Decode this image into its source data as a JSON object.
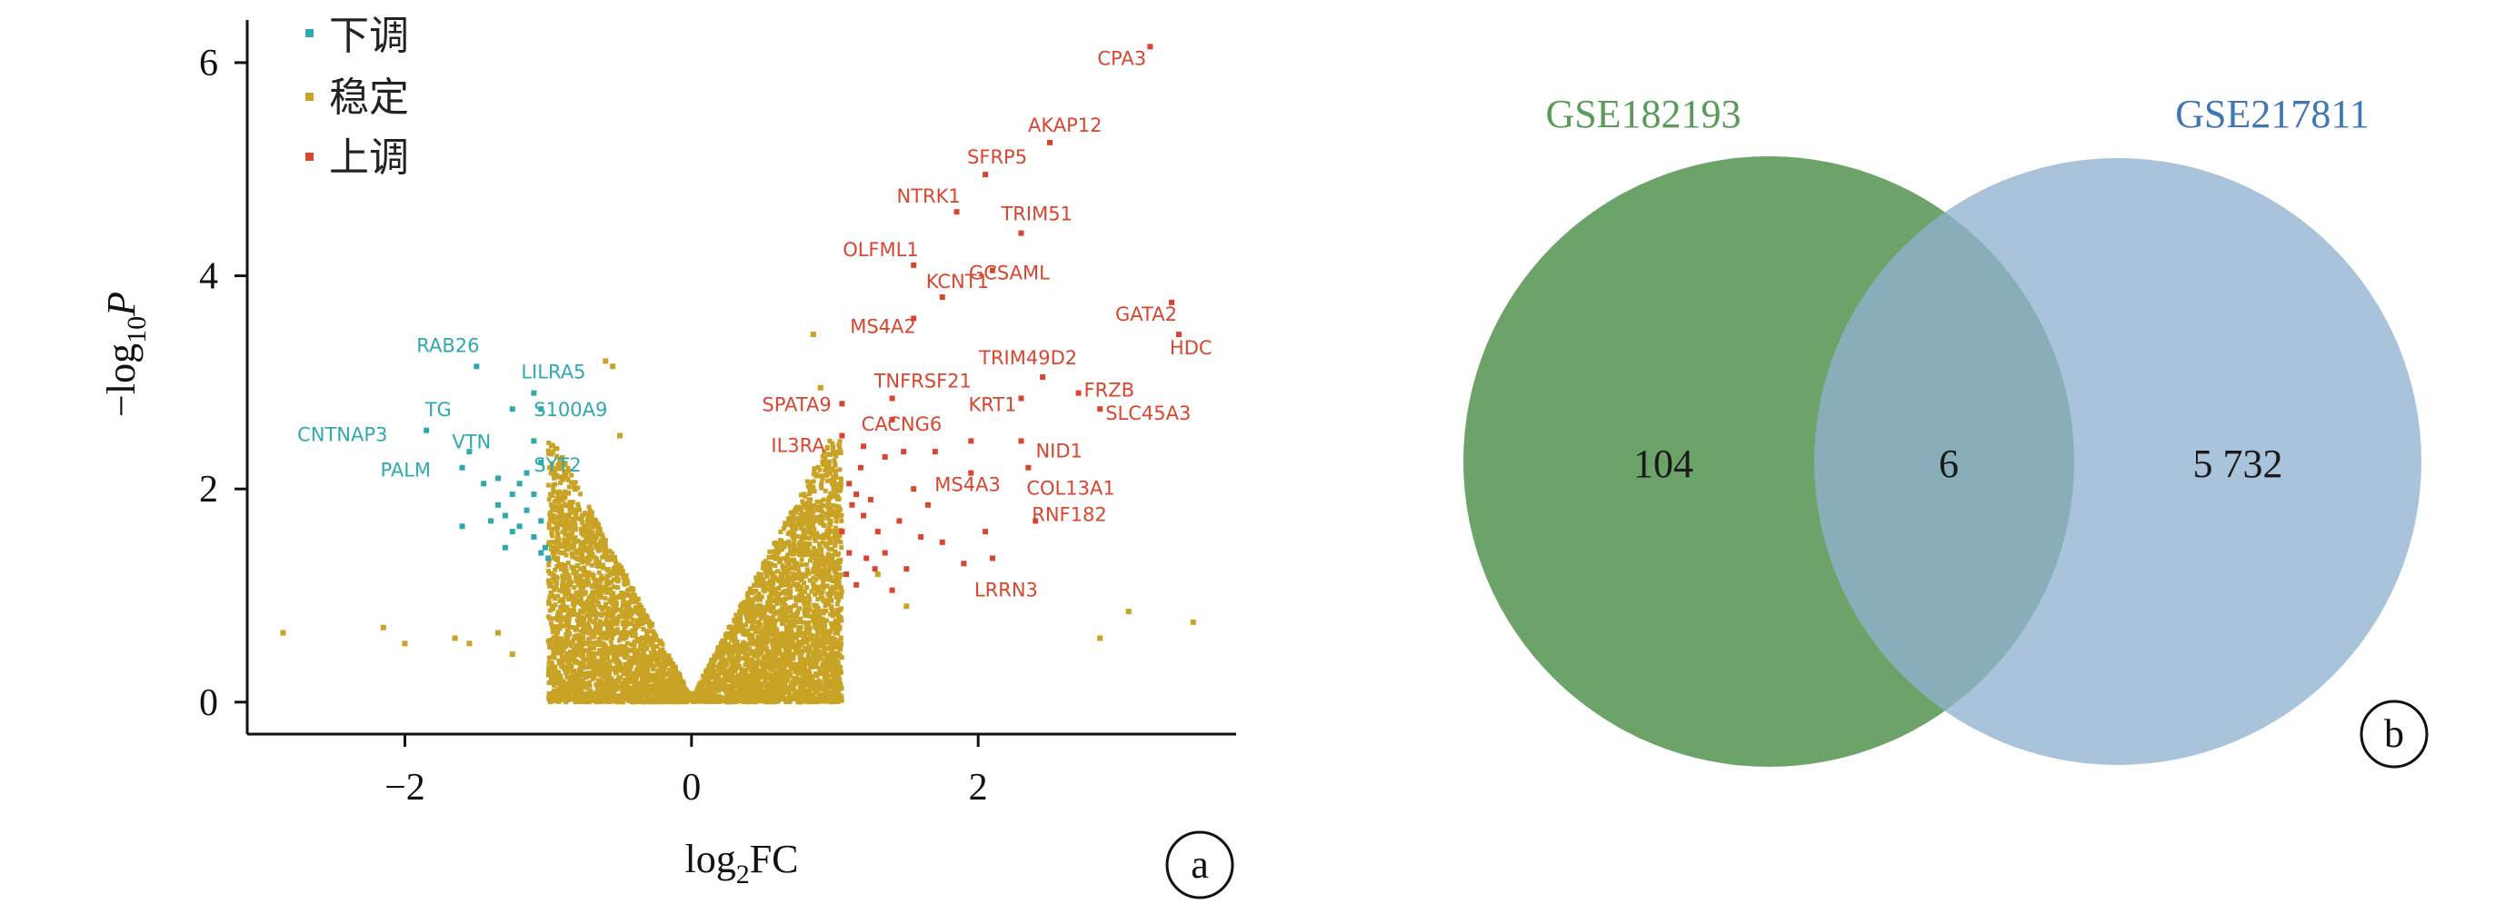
{
  "colors": {
    "down": "#2fa9b0",
    "stable": "#c9a325",
    "up": "#d9452f",
    "venn_left": "#5f9b5c",
    "venn_right": "#8fb2cf",
    "venn_left_label": "#5a9a5a",
    "venn_right_label": "#3f76b5"
  },
  "panel_a": {
    "panel_letter": "a",
    "chart_data": {
      "type": "scatter",
      "title": "",
      "xlabel_base": "log",
      "xlabel_sub": "2",
      "xlabel_tail": "FC",
      "ylabel_prefix": "−log",
      "ylabel_sub": "10",
      "ylabel_tail": "P",
      "xlim": [
        -3.1,
        3.8
      ],
      "ylim": [
        -0.3,
        6.4
      ],
      "x_ticks": [
        -2,
        0,
        2
      ],
      "x_tick_labels": [
        "−2",
        "0",
        "2"
      ],
      "y_ticks": [
        0,
        2,
        4,
        6
      ],
      "y_tick_labels": [
        "0",
        "2",
        "4",
        "6"
      ],
      "grid": false,
      "legend_position": "top-left",
      "legend": [
        {
          "key": "down",
          "label": "下调"
        },
        {
          "key": "stable",
          "label": "稳定"
        },
        {
          "key": "up",
          "label": "上调"
        }
      ],
      "stable_background_points": "dense V-shaped cloud, approx. 6000 points from (0,0) rising to |log2FC|≈1 at −log10P≈2.3",
      "stable_scattered": [
        [
          -2.85,
          0.65
        ],
        [
          -2.15,
          0.7
        ],
        [
          -2.0,
          0.55
        ],
        [
          -1.65,
          0.6
        ],
        [
          -1.55,
          0.55
        ],
        [
          -1.35,
          0.65
        ],
        [
          -1.25,
          0.45
        ],
        [
          -0.6,
          3.2
        ],
        [
          -0.55,
          3.15
        ],
        [
          -0.5,
          2.5
        ],
        [
          0.85,
          3.45
        ],
        [
          0.9,
          2.95
        ],
        [
          2.85,
          0.6
        ],
        [
          3.05,
          0.85
        ],
        [
          3.5,
          0.75
        ],
        [
          1.3,
          1.2
        ],
        [
          1.5,
          0.9
        ]
      ],
      "down_genes": [
        {
          "label": "RAB26",
          "x": -1.5,
          "y": 3.15
        },
        {
          "label": "LILRA5",
          "x": -1.1,
          "y": 2.9
        },
        {
          "label": "TG",
          "x": -1.25,
          "y": 2.75
        },
        {
          "label": "S100A9",
          "x": -1.05,
          "y": 2.75
        },
        {
          "label": "CNTNAP3",
          "x": -1.85,
          "y": 2.55
        },
        {
          "label": "VTN",
          "x": -1.1,
          "y": 2.45
        },
        {
          "label": "PALM",
          "x": -1.6,
          "y": 2.2
        },
        {
          "label": "SYT2",
          "x": -1.05,
          "y": 2.25
        }
      ],
      "down_extra": [
        [
          -1.55,
          2.35
        ],
        [
          -1.45,
          2.05
        ],
        [
          -1.35,
          1.85
        ],
        [
          -1.3,
          1.75
        ],
        [
          -1.25,
          1.6
        ],
        [
          -1.2,
          1.65
        ],
        [
          -1.15,
          1.8
        ],
        [
          -1.1,
          1.55
        ],
        [
          -1.05,
          1.4
        ],
        [
          -1.3,
          1.45
        ],
        [
          -1.4,
          1.7
        ],
        [
          -1.6,
          1.65
        ],
        [
          -1.1,
          1.95
        ],
        [
          -1.2,
          2.05
        ],
        [
          -1.05,
          1.7
        ],
        [
          -1.02,
          1.45
        ],
        [
          -1.0,
          1.35
        ],
        [
          -1.35,
          2.1
        ],
        [
          -1.15,
          2.15
        ],
        [
          -1.25,
          1.95
        ]
      ],
      "up_genes": [
        {
          "label": "CPA3",
          "x": 3.2,
          "y": 6.15
        },
        {
          "label": "AKAP12",
          "x": 2.5,
          "y": 5.25
        },
        {
          "label": "SFRP5",
          "x": 2.05,
          "y": 4.95
        },
        {
          "label": "NTRK1",
          "x": 1.85,
          "y": 4.6
        },
        {
          "label": "TRIM51",
          "x": 2.3,
          "y": 4.4
        },
        {
          "label": "OLFML1",
          "x": 1.55,
          "y": 4.1
        },
        {
          "label": "GCSAML",
          "x": 2.1,
          "y": 4.05
        },
        {
          "label": "KCNT1",
          "x": 1.75,
          "y": 3.8
        },
        {
          "label": "GATA2",
          "x": 3.35,
          "y": 3.75
        },
        {
          "label": "MS4A2",
          "x": 1.55,
          "y": 3.6
        },
        {
          "label": "HDC",
          "x": 3.4,
          "y": 3.45
        },
        {
          "label": "TRIM49D2",
          "x": 2.45,
          "y": 3.05
        },
        {
          "label": "TNFRSF21",
          "x": 1.4,
          "y": 2.85
        },
        {
          "label": "FRZB",
          "x": 2.7,
          "y": 2.9
        },
        {
          "label": "SPATA9",
          "x": 1.05,
          "y": 2.8
        },
        {
          "label": "KRT1",
          "x": 2.3,
          "y": 2.85
        },
        {
          "label": "CACNG6",
          "x": 1.4,
          "y": 2.65
        },
        {
          "label": "SLC45A3",
          "x": 2.85,
          "y": 2.75
        },
        {
          "label": "IL3RA",
          "x": 1.05,
          "y": 2.5
        },
        {
          "label": "NID1",
          "x": 2.3,
          "y": 2.45
        },
        {
          "label": "MS4A3",
          "x": 1.95,
          "y": 2.15
        },
        {
          "label": "COL13A1",
          "x": 2.35,
          "y": 2.2
        },
        {
          "label": "RNF182",
          "x": 2.4,
          "y": 1.7
        },
        {
          "label": "LRRN3",
          "x": 2.1,
          "y": 1.35
        }
      ],
      "up_extra": [
        [
          1.1,
          2.05
        ],
        [
          1.15,
          1.95
        ],
        [
          1.12,
          1.85
        ],
        [
          1.2,
          1.75
        ],
        [
          1.25,
          1.9
        ],
        [
          1.18,
          2.2
        ],
        [
          1.3,
          1.6
        ],
        [
          1.35,
          1.4
        ],
        [
          1.05,
          1.6
        ],
        [
          1.1,
          1.4
        ],
        [
          1.22,
          1.35
        ],
        [
          1.28,
          1.25
        ],
        [
          1.45,
          1.7
        ],
        [
          1.6,
          1.55
        ],
        [
          1.55,
          2.0
        ],
        [
          1.65,
          1.85
        ],
        [
          1.75,
          1.5
        ],
        [
          1.9,
          1.3
        ],
        [
          1.5,
          1.25
        ],
        [
          1.08,
          1.2
        ],
        [
          1.15,
          1.1
        ],
        [
          1.4,
          1.05
        ],
        [
          2.05,
          1.6
        ],
        [
          1.7,
          2.35
        ],
        [
          1.95,
          2.45
        ],
        [
          1.48,
          2.35
        ],
        [
          1.35,
          2.3
        ],
        [
          1.2,
          2.4
        ]
      ]
    }
  },
  "panel_b": {
    "panel_letter": "b",
    "chart_data": {
      "type": "venn",
      "sets": [
        {
          "name": "GSE182193",
          "only_label": "104"
        },
        {
          "name": "GSE217811",
          "only_label": "5 732"
        }
      ],
      "intersection_label": "6",
      "values": {
        "GSE182193_only": 104,
        "intersection": 6,
        "GSE217811_only": 5732
      }
    }
  }
}
